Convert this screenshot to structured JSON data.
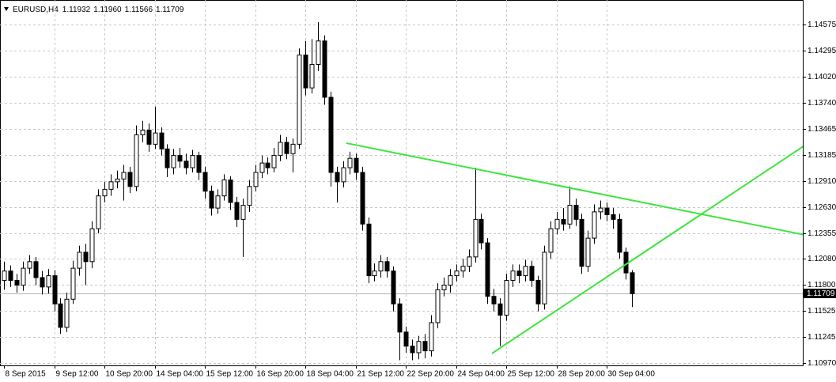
{
  "chart_data": {
    "type": "candlestick",
    "symbol": "EURUSD,H4",
    "header_ohlc": [
      "1.11932",
      "1.11960",
      "1.11566",
      "1.11709"
    ],
    "categories": [
      "8 Sep 2015",
      null,
      null,
      null,
      null,
      null,
      null,
      null,
      "9 Sep 12:00",
      null,
      null,
      null,
      null,
      null,
      null,
      null,
      "10 Sep 20:00",
      null,
      null,
      null,
      null,
      null,
      null,
      null,
      "14 Sep 04:00",
      null,
      null,
      null,
      null,
      null,
      null,
      null,
      "15 Sep 12:00",
      null,
      null,
      null,
      null,
      null,
      null,
      null,
      "16 Sep 20:00",
      null,
      null,
      null,
      null,
      null,
      null,
      null,
      "18 Sep 04:00",
      null,
      null,
      null,
      null,
      null,
      null,
      null,
      "21 Sep 12:00",
      null,
      null,
      null,
      null,
      null,
      null,
      null,
      "22 Sep 20:00",
      null,
      null,
      null,
      null,
      null,
      null,
      null,
      "24 Sep 04:00",
      null,
      null,
      null,
      null,
      null,
      null,
      null,
      "25 Sep 12:00",
      null,
      null,
      null,
      null,
      null,
      null,
      null,
      "28 Sep 20:00",
      null,
      null,
      null,
      null,
      null,
      null,
      null,
      "30 Sep 04:00",
      null,
      null,
      null,
      null
    ],
    "open": [
      1.1185,
      1.1195,
      1.1185,
      1.118,
      1.1198,
      1.1205,
      1.1188,
      1.1178,
      1.119,
      1.116,
      1.1135,
      1.1165,
      1.1198,
      1.1215,
      1.1205,
      1.124,
      1.1275,
      1.1282,
      1.129,
      1.1293,
      1.13,
      1.1285,
      1.134,
      1.1345,
      1.133,
      1.1342,
      1.1325,
      1.1305,
      1.1318,
      1.1312,
      1.1305,
      1.1318,
      1.13,
      1.128,
      1.1262,
      1.1275,
      1.1292,
      1.1268,
      1.125,
      1.1265,
      1.1285,
      1.13,
      1.131,
      1.1305,
      1.1318,
      1.1332,
      1.132,
      1.133,
      1.1425,
      1.139,
      1.1415,
      1.144,
      1.138,
      1.13,
      1.129,
      1.1305,
      1.1315,
      1.13,
      1.1245,
      1.119,
      1.1195,
      1.1205,
      1.1195,
      1.116,
      1.113,
      1.1115,
      1.1108,
      1.112,
      1.111,
      1.114,
      1.1175,
      1.118,
      1.119,
      1.1195,
      1.12,
      1.121,
      1.125,
      1.1225,
      1.1168,
      1.116,
      1.1148,
      1.1185,
      1.1195,
      1.119,
      1.12,
      1.1185,
      1.116,
      1.1215,
      1.124,
      1.125,
      1.1245,
      1.1265,
      1.125,
      1.12,
      1.123,
      1.1258,
      1.1262,
      1.1255,
      1.125,
      1.1215,
      1.11932
    ],
    "high": [
      1.1205,
      1.1201,
      1.1192,
      1.1205,
      1.1212,
      1.121,
      1.1195,
      1.1197,
      1.1196,
      1.1166,
      1.1172,
      1.1206,
      1.1222,
      1.1224,
      1.1248,
      1.1282,
      1.129,
      1.1298,
      1.1302,
      1.1308,
      1.1306,
      1.135,
      1.1355,
      1.1352,
      1.137,
      1.1348,
      1.133,
      1.1325,
      1.1326,
      1.132,
      1.1324,
      1.1322,
      1.1306,
      1.1286,
      1.1282,
      1.1298,
      1.1296,
      1.1274,
      1.1272,
      1.1292,
      1.1308,
      1.1318,
      1.1316,
      1.1326,
      1.134,
      1.1338,
      1.1336,
      1.1432,
      1.144,
      1.1442,
      1.146,
      1.1446,
      1.1386,
      1.1306,
      1.1312,
      1.1322,
      1.132,
      1.1306,
      1.1252,
      1.1203,
      1.1212,
      1.121,
      1.12,
      1.1166,
      1.1136,
      1.1122,
      1.1126,
      1.1128,
      1.1148,
      1.1182,
      1.1188,
      1.1197,
      1.1202,
      1.1208,
      1.1218,
      1.1305,
      1.1256,
      1.123,
      1.1176,
      1.1166,
      1.1192,
      1.1202,
      1.1202,
      1.1207,
      1.1206,
      1.119,
      1.1222,
      1.1248,
      1.1258,
      1.1262,
      1.1285,
      1.1272,
      1.1256,
      1.1238,
      1.1266,
      1.127,
      1.1268,
      1.1262,
      1.1256,
      1.122,
      1.1196
    ],
    "low": [
      1.1175,
      1.1178,
      1.1172,
      1.1174,
      1.1192,
      1.118,
      1.117,
      1.1171,
      1.1152,
      1.1128,
      1.113,
      1.116,
      1.119,
      1.118,
      1.1198,
      1.1235,
      1.1268,
      1.1275,
      1.1283,
      1.127,
      1.1278,
      1.128,
      1.1332,
      1.1322,
      1.1325,
      1.1318,
      1.1295,
      1.1298,
      1.1305,
      1.1298,
      1.13,
      1.1292,
      1.1272,
      1.1254,
      1.1256,
      1.127,
      1.126,
      1.1242,
      1.121,
      1.1258,
      1.128,
      1.1294,
      1.1298,
      1.13,
      1.1312,
      1.1314,
      1.13,
      1.1325,
      1.1382,
      1.1384,
      1.1408,
      1.1372,
      1.1285,
      1.1268,
      1.1284,
      1.1298,
      1.1292,
      1.1238,
      1.1182,
      1.1184,
      1.1188,
      1.1188,
      1.1152,
      1.11,
      1.1108,
      1.11,
      1.1101,
      1.1102,
      1.1104,
      1.1134,
      1.1168,
      1.1172,
      1.1184,
      1.1188,
      1.1194,
      1.1204,
      1.1218,
      1.116,
      1.1152,
      1.1115,
      1.1142,
      1.1178,
      1.1182,
      1.1184,
      1.1178,
      1.1152,
      1.1154,
      1.1208,
      1.1234,
      1.1238,
      1.124,
      1.1243,
      1.1192,
      1.1194,
      1.1224,
      1.125,
      1.1248,
      1.124,
      1.1208,
      1.1186,
      1.11566
    ],
    "close": [
      1.1195,
      1.1185,
      1.118,
      1.1198,
      1.1205,
      1.1188,
      1.1178,
      1.119,
      1.116,
      1.1135,
      1.1165,
      1.1198,
      1.1215,
      1.1205,
      1.124,
      1.1275,
      1.1282,
      1.129,
      1.1293,
      1.13,
      1.1285,
      1.134,
      1.1345,
      1.133,
      1.1342,
      1.1325,
      1.1305,
      1.1318,
      1.1312,
      1.1305,
      1.1318,
      1.13,
      1.128,
      1.1262,
      1.1275,
      1.1292,
      1.1268,
      1.125,
      1.1265,
      1.1285,
      1.13,
      1.131,
      1.1305,
      1.1318,
      1.1332,
      1.132,
      1.133,
      1.1425,
      1.139,
      1.1415,
      1.144,
      1.138,
      1.13,
      1.129,
      1.1305,
      1.1315,
      1.13,
      1.1245,
      1.119,
      1.1195,
      1.1205,
      1.1195,
      1.116,
      1.113,
      1.1115,
      1.1108,
      1.112,
      1.111,
      1.114,
      1.1175,
      1.118,
      1.119,
      1.1195,
      1.12,
      1.121,
      1.125,
      1.1225,
      1.1168,
      1.116,
      1.1148,
      1.1185,
      1.1195,
      1.119,
      1.12,
      1.1185,
      1.116,
      1.1215,
      1.124,
      1.125,
      1.1245,
      1.1265,
      1.125,
      1.12,
      1.123,
      1.1258,
      1.1262,
      1.1255,
      1.125,
      1.1215,
      1.1193,
      1.11709
    ],
    "last_price": 1.11709,
    "trendlines": [
      {
        "color": "#3ce63c",
        "x": [
          54.5,
          127.5
        ],
        "y": [
          1.13312,
          1.12335
        ]
      },
      {
        "color": "#3ce63c",
        "x": [
          77.7,
          127.5
        ],
        "y": [
          1.11072,
          1.13287
        ]
      }
    ],
    "ylim": [
      1.10945,
      1.14836
    ],
    "yticks": [
      {
        "value": 1.14575,
        "label": "1.14575"
      },
      {
        "value": 1.14295,
        "label": "1.14295"
      },
      {
        "value": 1.1402,
        "label": "1.14020"
      },
      {
        "value": 1.1374,
        "label": "1.13740"
      },
      {
        "value": 1.13465,
        "label": "1.13465"
      },
      {
        "value": 1.13185,
        "label": "1.13185"
      },
      {
        "value": 1.1291,
        "label": "1.12910"
      },
      {
        "value": 1.1263,
        "label": "1.12630"
      },
      {
        "value": 1.12355,
        "label": "1.12355"
      },
      {
        "value": 1.1208,
        "label": "1.12080"
      },
      {
        "value": 1.118,
        "label": "1.11800"
      },
      {
        "value": 1.11525,
        "label": "1.11525"
      },
      {
        "value": 1.11245,
        "label": "1.11245"
      },
      {
        "value": 1.1097,
        "label": "1.10970"
      }
    ],
    "grid": true
  }
}
